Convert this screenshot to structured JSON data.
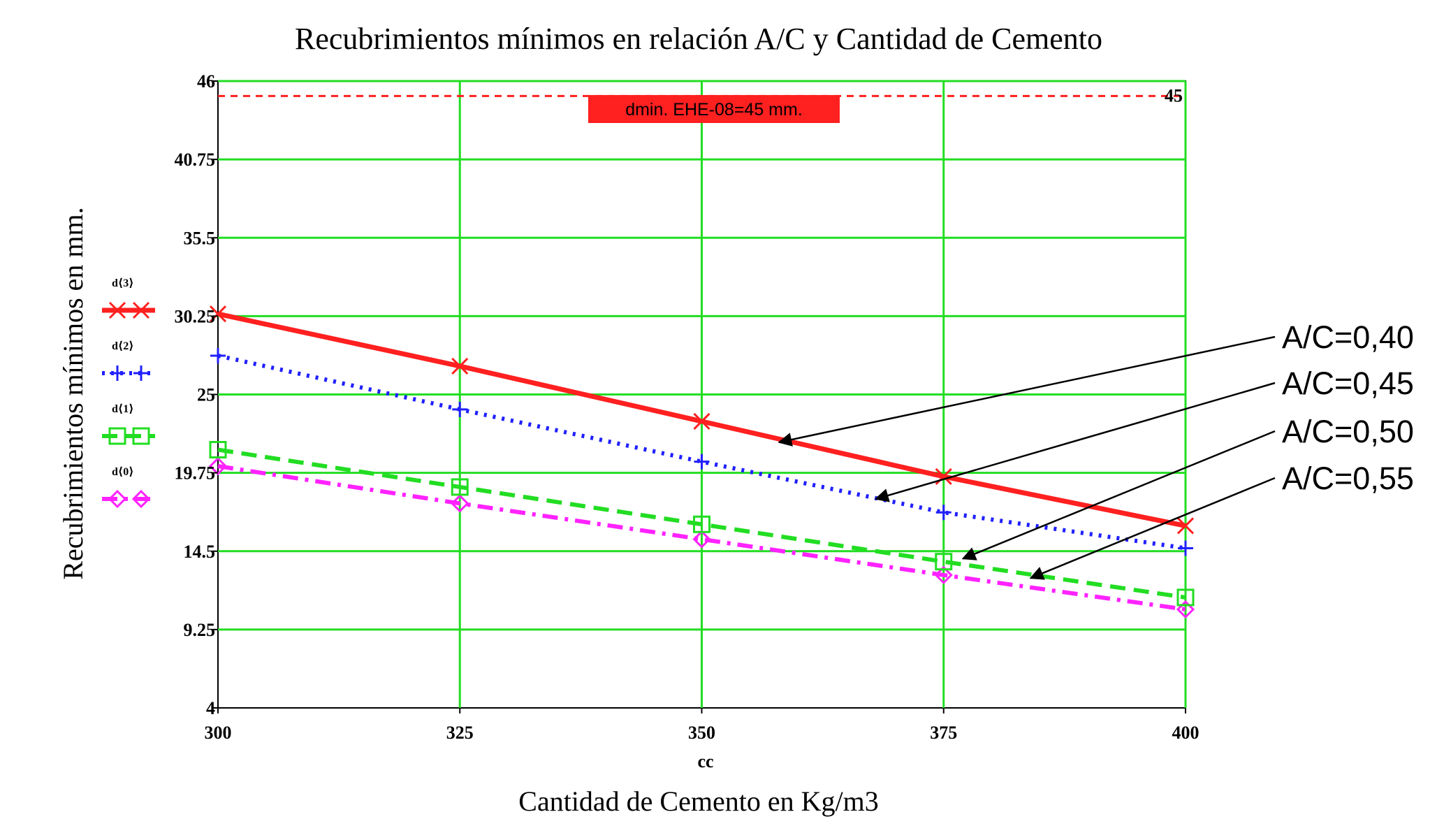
{
  "chart_data": {
    "type": "line",
    "title": "Recubrimientos mínimos en relación A/C y Cantidad de Cemento",
    "xlabel": "Cantidad de Cemento en Kg/m3",
    "x_variable": "cc",
    "ylabel": "Recubrimientos mínimos en mm.",
    "xlim": [
      300,
      400
    ],
    "ylim": [
      4,
      46
    ],
    "xticks": [
      "300",
      "325",
      "350",
      "375",
      "400"
    ],
    "yticks": [
      "4",
      "9.25",
      "14.5",
      "19.75",
      "25",
      "30.25",
      "35.5",
      "40.75",
      "46"
    ],
    "grid": true,
    "legend_position": "left",
    "x": [
      300,
      325,
      350,
      375,
      400
    ],
    "series": [
      {
        "name": "d⟨3⟩",
        "color": "#ff2020",
        "style": "solid",
        "marker": "x",
        "values": [
          30.4,
          26.9,
          23.2,
          19.5,
          16.2
        ]
      },
      {
        "name": "d⟨2⟩",
        "color": "#2020ff",
        "style": "dotted",
        "marker": "+",
        "values": [
          27.6,
          24.0,
          20.5,
          17.1,
          14.7
        ]
      },
      {
        "name": "d⟨1⟩",
        "color": "#22dd22",
        "style": "dashed",
        "marker": "square",
        "values": [
          21.3,
          18.8,
          16.3,
          13.8,
          11.4
        ]
      },
      {
        "name": "d⟨0⟩",
        "color": "#ff22ff",
        "style": "dashdot",
        "marker": "diamond",
        "values": [
          20.2,
          17.7,
          15.3,
          12.9,
          10.6
        ]
      }
    ],
    "reference_line": {
      "value": 45,
      "label": "45",
      "color": "#ff2020",
      "box_text": "dmin. EHE-08=45 mm.",
      "box_color": "#ff2020"
    },
    "annotations": [
      {
        "text": "A/C=0,40",
        "target_series": "d⟨3⟩",
        "x": 358,
        "y": 21.8
      },
      {
        "text": "A/C=0,45",
        "target_series": "d⟨2⟩",
        "x": 368,
        "y": 18.0
      },
      {
        "text": "A/C=0,50",
        "target_series": "d⟨1⟩",
        "x": 377,
        "y": 14.0
      },
      {
        "text": "A/C=0,55",
        "target_series": "d⟨0⟩",
        "x": 384,
        "y": 12.7
      }
    ]
  }
}
